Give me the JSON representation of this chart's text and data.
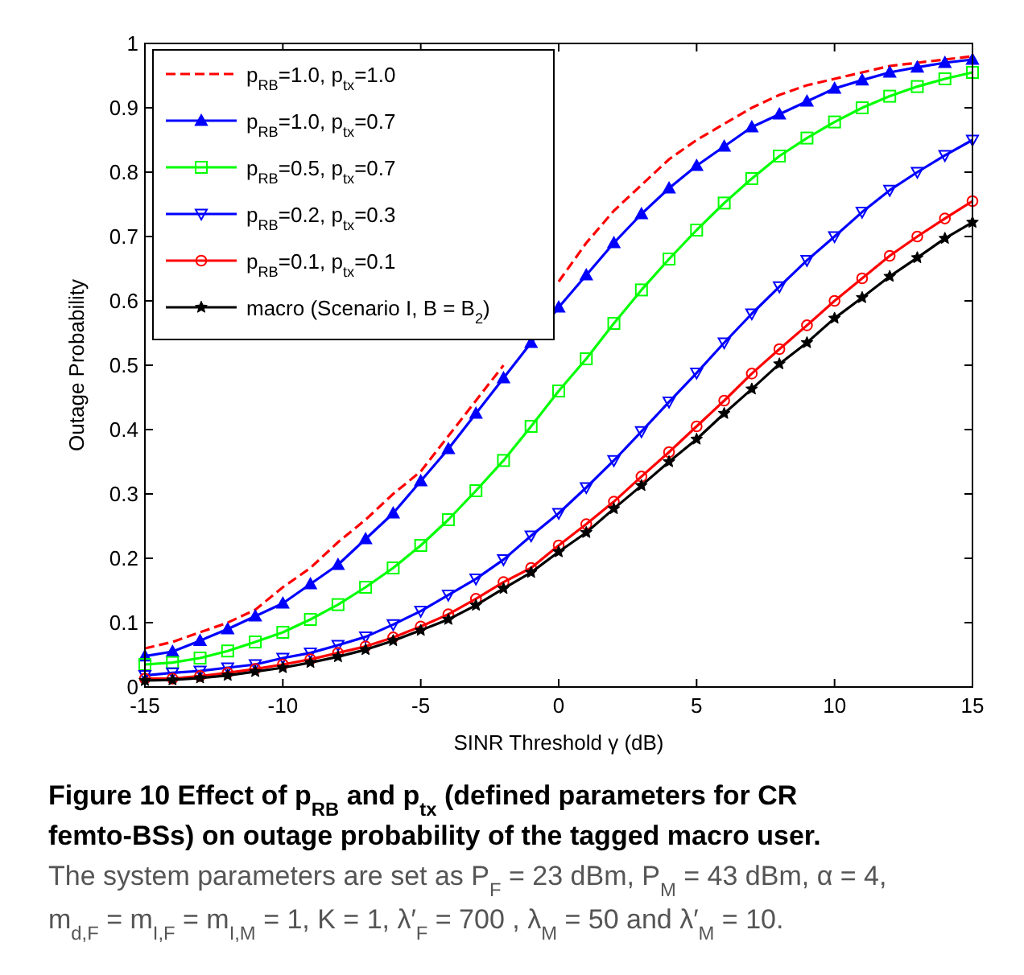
{
  "chart_data": {
    "type": "line",
    "title": "Figure 10 Effect of p$_{RB}$ and p$_{tx}$ (defined parameters for CR femto-BSs) on outage probability of the tagged macro user.",
    "xlabel": "SINR Threshold γ (dB)",
    "ylabel": "Outage Probability",
    "x": [
      -15,
      -14,
      -13,
      -12,
      -11,
      -10,
      -9,
      -8,
      -7,
      -6,
      -5,
      -4,
      -3,
      -2,
      -1,
      0,
      1,
      2,
      3,
      4,
      5,
      6,
      7,
      8,
      9,
      10,
      11,
      12,
      13,
      14,
      15
    ],
    "series": [
      {
        "name": "p$_{RB}$=1.0, p$_{tx}$=1.0",
        "color": "#ff0000",
        "line_style": "dashed",
        "marker": "none",
        "values": [
          0.06,
          0.07,
          0.085,
          0.1,
          0.12,
          0.155,
          0.185,
          0.225,
          0.26,
          0.3,
          0.335,
          0.39,
          0.445,
          0.5,
          null,
          0.63,
          0.69,
          0.74,
          0.78,
          0.82,
          0.85,
          0.875,
          0.9,
          0.92,
          0.935,
          0.945,
          0.955,
          0.965,
          0.97,
          0.975,
          0.98
        ]
      },
      {
        "name": "p$_{RB}$=1.0, p$_{tx}$=0.7",
        "color": "#0000ff",
        "line_style": "solid",
        "marker": "triangle",
        "values": [
          0.048,
          0.055,
          0.072,
          0.09,
          0.11,
          0.13,
          0.16,
          0.19,
          0.23,
          0.27,
          0.32,
          0.37,
          0.425,
          0.48,
          0.535,
          0.59,
          0.64,
          0.69,
          0.735,
          0.775,
          0.81,
          0.84,
          0.87,
          0.89,
          0.91,
          0.93,
          0.943,
          0.955,
          0.963,
          0.97,
          0.975
        ]
      },
      {
        "name": "p$_{RB}$=0.5, p$_{tx}$=0.7",
        "color": "#00ff00",
        "line_style": "solid",
        "marker": "square",
        "values": [
          0.035,
          0.038,
          0.045,
          0.056,
          0.07,
          0.085,
          0.105,
          0.128,
          0.155,
          0.185,
          0.22,
          0.26,
          0.305,
          0.352,
          0.405,
          0.46,
          0.51,
          0.565,
          0.617,
          0.665,
          0.71,
          0.752,
          0.79,
          0.825,
          0.853,
          0.878,
          0.9,
          0.918,
          0.933,
          0.945,
          0.955
        ]
      },
      {
        "name": "p$_{RB}$=0.2, p$_{tx}$=0.3",
        "color": "#0000ff",
        "line_style": "solid",
        "marker": "triangle-down",
        "values": [
          0.018,
          0.022,
          0.025,
          0.03,
          0.035,
          0.045,
          0.053,
          0.065,
          0.078,
          0.097,
          0.118,
          0.143,
          0.168,
          0.198,
          0.235,
          0.27,
          0.31,
          0.352,
          0.397,
          0.443,
          0.488,
          0.535,
          0.58,
          0.622,
          0.663,
          0.7,
          0.738,
          0.772,
          0.8,
          0.826,
          0.85
        ]
      },
      {
        "name": "p$_{RB}$=0.1, p$_{tx}$=0.1",
        "color": "#ff0000",
        "line_style": "solid",
        "marker": "circle",
        "values": [
          0.013,
          0.013,
          0.017,
          0.022,
          0.028,
          0.035,
          0.043,
          0.053,
          0.063,
          0.077,
          0.094,
          0.113,
          0.137,
          0.163,
          0.185,
          0.22,
          0.253,
          0.288,
          0.327,
          0.365,
          0.405,
          0.445,
          0.487,
          0.525,
          0.562,
          0.6,
          0.635,
          0.67,
          0.7,
          0.728,
          0.755
        ]
      },
      {
        "name": "macro (Scenario I, B = B$_{2}$)",
        "color": "#000000",
        "line_style": "solid",
        "marker": "star",
        "values": [
          0.01,
          0.011,
          0.014,
          0.018,
          0.024,
          0.03,
          0.038,
          0.047,
          0.058,
          0.072,
          0.088,
          0.105,
          0.127,
          0.153,
          0.178,
          0.21,
          0.24,
          0.277,
          0.313,
          0.35,
          0.385,
          0.425,
          0.463,
          0.502,
          0.535,
          0.573,
          0.605,
          0.638,
          0.667,
          0.697,
          0.722
        ]
      }
    ],
    "xlim": [
      -15,
      15
    ],
    "xticks": [
      -15,
      -10,
      -5,
      0,
      5,
      10,
      15
    ],
    "ylim": [
      0,
      1
    ],
    "yticks": [
      0,
      0.1,
      0.2,
      0.3,
      0.4,
      0.5,
      0.6,
      0.7,
      0.8,
      0.9,
      1
    ],
    "grid": false,
    "legend": "top left",
    "annotations": [
      "The system parameters are set as P$_{F}$ = 23 dBm, P$_{M}$ = 43 dBm, α = 4, m$_{d,F}$ = m$_{I,F}$ = m$_{I,M}$ = 1, K = 1, λ′$_{F}$ = 700 , λ$_{M}$ = 50 and λ′$_{M}$ = 10."
    ]
  }
}
